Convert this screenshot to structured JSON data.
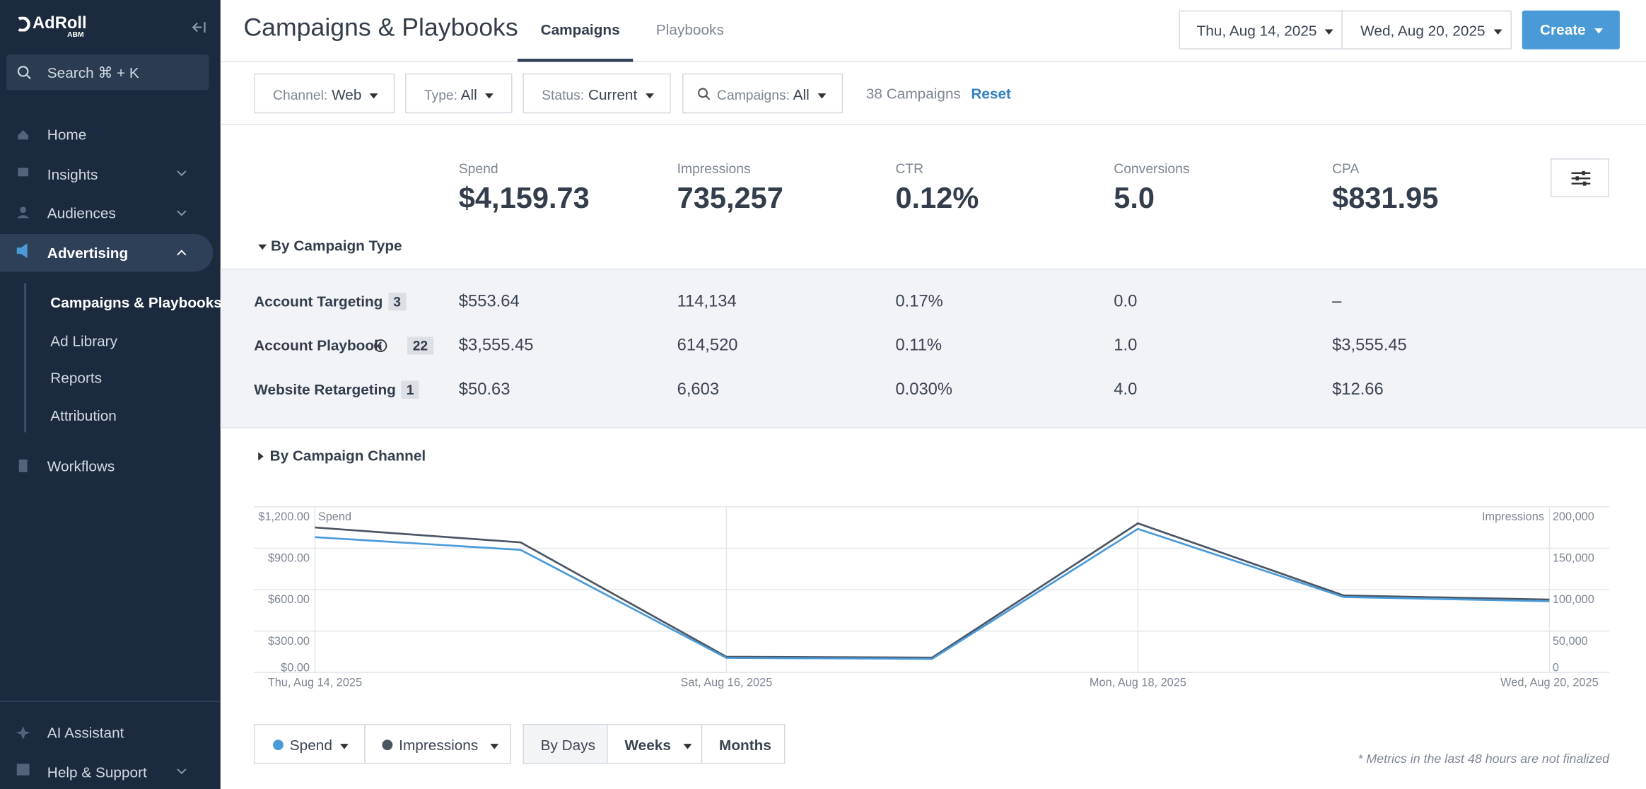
{
  "sidebar": {
    "logo": "AdRoll",
    "logo_sub": "ABM",
    "search": "Search ⌘ + K",
    "nav": [
      "Home",
      "Insights",
      "Audiences",
      "Advertising"
    ],
    "subnav": [
      "Campaigns & Playbooks",
      "Ad Library",
      "Reports",
      "Attribution"
    ],
    "workflows": "Workflows",
    "bottom": [
      "AI Assistant",
      "Help & Support"
    ]
  },
  "header": {
    "title": "Campaigns & Playbooks",
    "tabs": [
      "Campaigns",
      "Playbooks"
    ],
    "date_start": "Thu, Aug 14, 2025",
    "date_end": "Wed, Aug 20, 2025",
    "create": "Create"
  },
  "filters": [
    {
      "key": "Channel:",
      "value": "Web"
    },
    {
      "key": "Type:",
      "value": "All"
    },
    {
      "key": "Status:",
      "value": "Current"
    },
    {
      "key": "Campaigns:",
      "value": "All"
    }
  ],
  "campaign_count": "38 Campaigns",
  "reset": "Reset",
  "summary": [
    {
      "label": "Spend",
      "value": "$4,159.73"
    },
    {
      "label": "Impressions",
      "value": "735,257"
    },
    {
      "label": "CTR",
      "value": "0.12%"
    },
    {
      "label": "Conversions",
      "value": "5.0"
    },
    {
      "label": "CPA",
      "value": "$831.95"
    }
  ],
  "by_type": "By Campaign Type",
  "table": {
    "rows": [
      {
        "name": "Account Targeting",
        "count": "3",
        "cells": [
          "$553.64",
          "114,134",
          "0.17%",
          "0.0",
          "–"
        ]
      },
      {
        "name": "Account Playbook",
        "count": "22",
        "cells": [
          "$3,555.45",
          "614,520",
          "0.11%",
          "1.0",
          "$3,555.45"
        ]
      },
      {
        "name": "Website Retargeting",
        "count": "1",
        "cells": [
          "$50.63",
          "6,603",
          "0.030%",
          "4.0",
          "$12.66"
        ]
      }
    ]
  },
  "by_channel": "By Campaign Channel",
  "chart_data": {
    "type": "line",
    "categories": [
      "Thu, Aug 14, 2025",
      null,
      "Sat, Aug 16, 2025",
      null,
      "Mon, Aug 18, 2025",
      null,
      "Wed, Aug 20, 2025"
    ],
    "series": [
      {
        "name": "Spend",
        "color": "#4a9ad8",
        "values": [
          980,
          888,
          106,
          99,
          1040,
          547,
          516
        ]
      },
      {
        "name": "Impressions",
        "color": "#4b5563",
        "axis": "y2",
        "values": [
          175000,
          157000,
          19000,
          18000,
          180000,
          93000,
          88000
        ]
      }
    ],
    "ylabel": "Spend",
    "y2label": "Impressions",
    "ylim": [
      0,
      1200
    ],
    "yticks": [
      {
        "value": 0,
        "label": "$0.00"
      },
      {
        "value": 300,
        "label": "$300.00"
      },
      {
        "value": 600,
        "label": "$600.00"
      },
      {
        "value": 900,
        "label": "$900.00"
      },
      {
        "value": 1200,
        "label": "$1,200.00"
      }
    ],
    "y2lim": [
      0,
      200000
    ],
    "y2ticks": [
      0,
      {
        "value": 50000,
        "label": "50,000"
      },
      {
        "value": 100000,
        "label": "100,000"
      },
      {
        "value": 150000,
        "label": "150,000"
      },
      {
        "value": 200000,
        "label": "200,000"
      }
    ],
    "grid": true
  },
  "periods": [
    "By Days",
    "Weeks",
    "Months"
  ],
  "footnote": "* Metrics in the last 48 hours are not finalized"
}
